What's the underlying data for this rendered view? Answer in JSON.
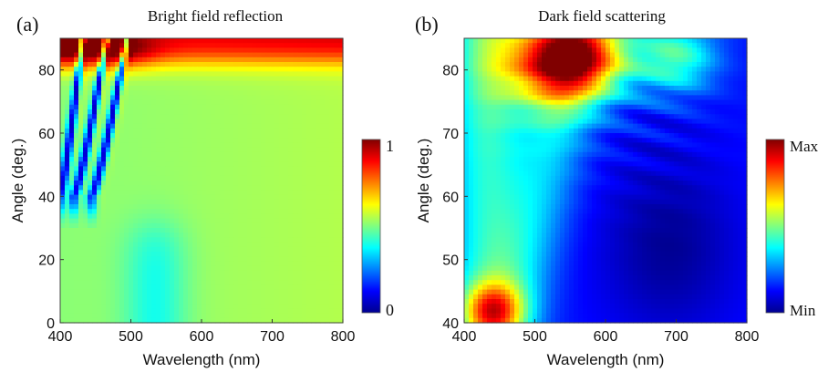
{
  "chart_data": [
    {
      "type": "heatmap",
      "panel_label": "(a)",
      "title": "Bright field reflection",
      "xlabel": "Wavelength (nm)",
      "ylabel": "Angle (deg.)",
      "xlim": [
        400,
        800
      ],
      "ylim": [
        0,
        90
      ],
      "xticks": [
        400,
        500,
        600,
        700,
        800
      ],
      "yticks": [
        0,
        20,
        40,
        60,
        80
      ],
      "colorbar": {
        "min_label": "0",
        "max_label": "1",
        "range": [
          0,
          1
        ],
        "colormap": "jet"
      },
      "field": {
        "base_level": 0.53,
        "features": [
          {
            "kind": "high-angle band",
            "angle_from": 80,
            "angle_to": 90,
            "level": 0.9
          },
          {
            "kind": "low reflection dip",
            "wavelength": 535,
            "angle_from": 0,
            "angle_to": 30,
            "level": 0.4
          },
          {
            "kind": "narrow resonance",
            "wavelength_at_90deg": 432,
            "wavelength_at_40deg": 400,
            "level": 0.12
          },
          {
            "kind": "narrow resonance",
            "wavelength_at_90deg": 466,
            "wavelength_at_40deg": 420,
            "level": 0.12
          },
          {
            "kind": "narrow resonance",
            "wavelength_at_90deg": 495,
            "wavelength_at_40deg": 445,
            "level": 0.12
          }
        ]
      }
    },
    {
      "type": "heatmap",
      "panel_label": "(b)",
      "title": "Dark field scattering",
      "xlabel": "Wavelength (nm)",
      "ylabel": "Angle (deg.)",
      "xlim": [
        400,
        800
      ],
      "ylim": [
        40,
        85
      ],
      "xticks": [
        400,
        500,
        600,
        700,
        800
      ],
      "yticks": [
        40,
        50,
        60,
        70,
        80
      ],
      "colorbar": {
        "min_label": "Min",
        "max_label": "Max",
        "range": [
          0,
          1
        ],
        "colormap": "jet"
      },
      "field": {
        "base_level": 0.14,
        "features": [
          {
            "kind": "scattering maximum",
            "wavelength": 545,
            "angle": 82,
            "level": 0.95
          },
          {
            "kind": "high-angle lobe",
            "wavelength": 700,
            "angle": 82,
            "level": 0.4
          },
          {
            "kind": "left band",
            "wavelength": 430,
            "angle_from": 40,
            "angle_to": 85,
            "level": 0.45
          },
          {
            "kind": "low-angle spot",
            "wavelength": 440,
            "angle": 42,
            "level": 0.55
          },
          {
            "kind": "scattering minimum",
            "wavelength": 690,
            "angle": 52,
            "level": 0.05
          }
        ]
      }
    }
  ]
}
